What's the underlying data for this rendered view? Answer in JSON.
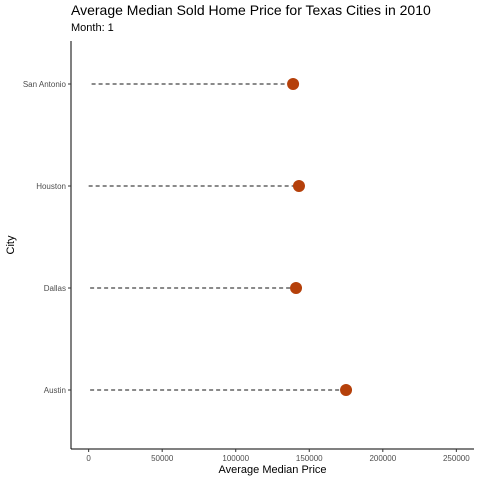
{
  "title": "Average Median Sold Home Price for Texas Cities in 2010",
  "subtitle": "Month: 1",
  "chart_data": {
    "type": "lollipop",
    "title": "Average Median Sold Home Price for Texas Cities in 2010",
    "subtitle": "Month: 1",
    "xlabel": "Average Median Price",
    "ylabel": "City",
    "xlim": [
      -12000,
      262000
    ],
    "xticks": [
      0,
      50000,
      100000,
      150000,
      200000,
      250000
    ],
    "categories": [
      "Austin",
      "Dallas",
      "Houston",
      "San Antonio"
    ],
    "values": [
      175000,
      141000,
      143000,
      139000
    ],
    "segment_start": [
      1000,
      1000,
      0,
      2000
    ],
    "grid": false,
    "colors": {
      "point": "#b5400a",
      "segment": "#444444"
    }
  }
}
